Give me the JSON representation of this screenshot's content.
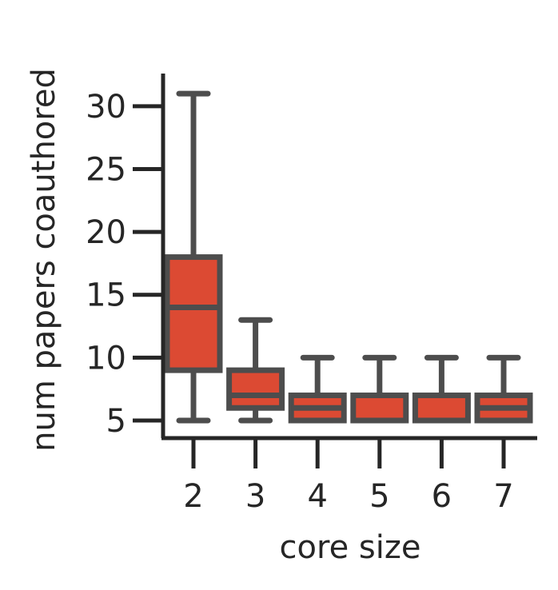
{
  "chart_data": {
    "type": "box",
    "xlabel": "core size",
    "ylabel": "num papers coauthored",
    "categories": [
      "2",
      "3",
      "4",
      "5",
      "6",
      "7"
    ],
    "ylim": [
      3.6,
      32.6
    ],
    "yticks": [
      5,
      10,
      15,
      20,
      25,
      30
    ],
    "grid": false,
    "boxes": [
      {
        "category": "2",
        "whisker_low": 5,
        "q1": 9,
        "median": 14,
        "q3": 18,
        "whisker_high": 31
      },
      {
        "category": "3",
        "whisker_low": 5,
        "q1": 6,
        "median": 7,
        "q3": 9,
        "whisker_high": 13
      },
      {
        "category": "4",
        "whisker_low": 5,
        "q1": 5,
        "median": 6,
        "q3": 7,
        "whisker_high": 10
      },
      {
        "category": "5",
        "whisker_low": 5,
        "q1": 5,
        "median": 5,
        "q3": 7,
        "whisker_high": 10
      },
      {
        "category": "6",
        "whisker_low": 5,
        "q1": 5,
        "median": 5,
        "q3": 7,
        "whisker_high": 10
      },
      {
        "category": "7",
        "whisker_low": 5,
        "q1": 5,
        "median": 6,
        "q3": 7,
        "whisker_high": 10
      }
    ],
    "colors": {
      "box_fill": "#dc4a33",
      "box_edge": "#4d4d4d",
      "axis": "#262626",
      "text": "#262626"
    }
  }
}
